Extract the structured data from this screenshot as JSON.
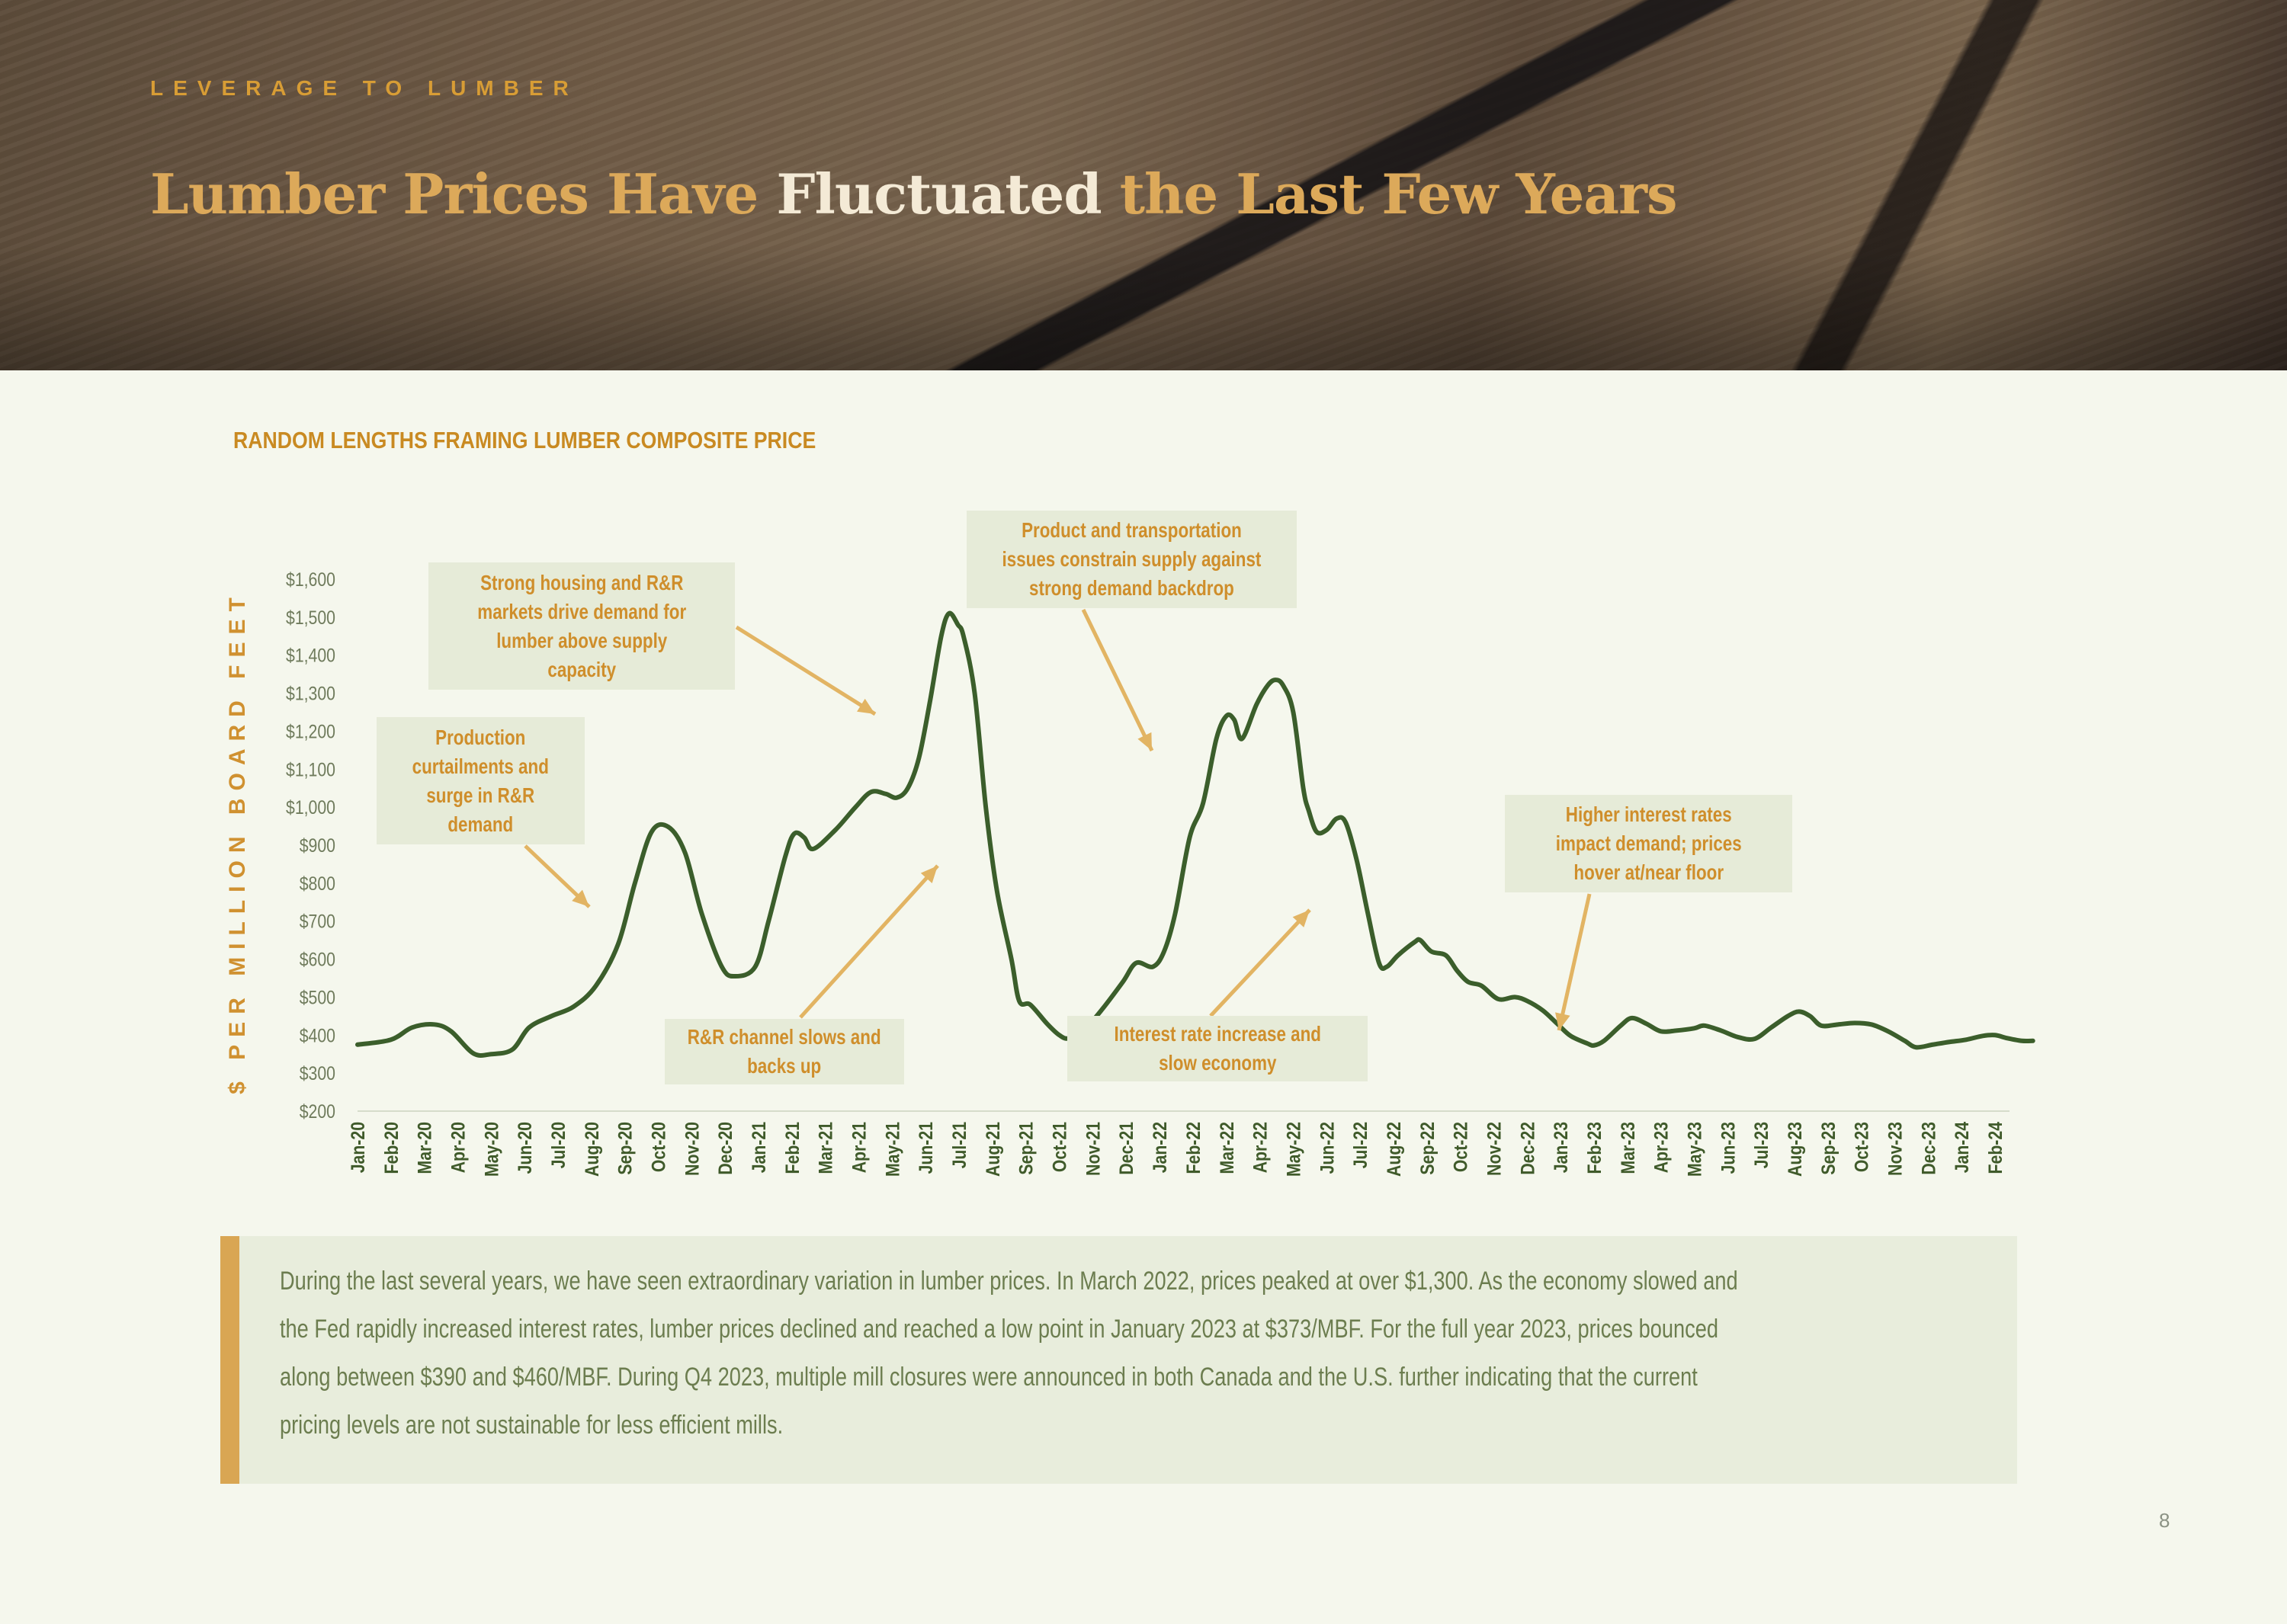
{
  "header": {
    "kicker": "LEVERAGE TO LUMBER",
    "title_part1": "Lumber Prices Have ",
    "title_highlight": "Fluctuated",
    "title_part2": " the Last Few Years"
  },
  "colors": {
    "accent_gold": "#d89d35",
    "line_green": "#3b5e2b",
    "annotation_bg": "#e6ebd8",
    "note_bar": "#d9a653"
  },
  "chart_data": {
    "type": "line",
    "title": "RANDOM LENGTHS FRAMING LUMBER COMPOSITE PRICE",
    "xlabel": "",
    "ylabel": "$ PER MILLION BOARD FEET",
    "ylim": [
      200,
      1600
    ],
    "y_ticks": [
      "$200",
      "$300",
      "$400",
      "$500",
      "$600",
      "$700",
      "$800",
      "$900",
      "$1,000",
      "$1,100",
      "$1,200",
      "$1,300",
      "$1,400",
      "$1,500",
      "$1,600"
    ],
    "y_tick_values": [
      200,
      300,
      400,
      500,
      600,
      700,
      800,
      900,
      1000,
      1100,
      1200,
      1300,
      1400,
      1500,
      1600
    ],
    "x_tick_labels": [
      "Jan-20",
      "Feb-20",
      "Mar-20",
      "Apr-20",
      "May-20",
      "Jun-20",
      "Jul-20",
      "Aug-20",
      "Sep-20",
      "Oct-20",
      "Nov-20",
      "Dec-20",
      "Jan-21",
      "Feb-21",
      "Mar-21",
      "Apr-21",
      "May-21",
      "Jun-21",
      "Jul-21",
      "Aug-21",
      "Sep-21",
      "Oct-21",
      "Nov-21",
      "Dec-21",
      "Jan-22",
      "Feb-22",
      "Mar-22",
      "Apr-22",
      "May-22",
      "Jun-22",
      "Jul-22",
      "Aug-22",
      "Sep-22",
      "Oct-22",
      "Nov-22",
      "Dec-22",
      "Jan-23",
      "Feb-23",
      "Mar-23",
      "Apr-23",
      "May-23",
      "Jun-23",
      "Jul-23",
      "Aug-23",
      "Sep-23",
      "Oct-23",
      "Nov-23",
      "Dec-23",
      "Jan-24",
      "Feb-24"
    ],
    "grid": false,
    "series": [
      {
        "points": [
          [
            "2020-01-01",
            375
          ],
          [
            "2020-02-01",
            388
          ],
          [
            "2020-02-20",
            420
          ],
          [
            "2020-03-10",
            428
          ],
          [
            "2020-03-25",
            410
          ],
          [
            "2020-04-15",
            352
          ],
          [
            "2020-05-01",
            350
          ],
          [
            "2020-05-20",
            362
          ],
          [
            "2020-06-05",
            420
          ],
          [
            "2020-06-25",
            450
          ],
          [
            "2020-07-15",
            475
          ],
          [
            "2020-08-05",
            530
          ],
          [
            "2020-08-25",
            640
          ],
          [
            "2020-09-10",
            800
          ],
          [
            "2020-09-25",
            935
          ],
          [
            "2020-10-10",
            948
          ],
          [
            "2020-10-25",
            880
          ],
          [
            "2020-11-10",
            720
          ],
          [
            "2020-11-28",
            580
          ],
          [
            "2020-12-10",
            555
          ],
          [
            "2020-12-28",
            580
          ],
          [
            "2021-01-10",
            700
          ],
          [
            "2021-01-25",
            870
          ],
          [
            "2021-02-03",
            930
          ],
          [
            "2021-02-12",
            920
          ],
          [
            "2021-02-20",
            890
          ],
          [
            "2021-03-10",
            940
          ],
          [
            "2021-03-28",
            1000
          ],
          [
            "2021-04-12",
            1040
          ],
          [
            "2021-04-25",
            1035
          ],
          [
            "2021-05-05",
            1025
          ],
          [
            "2021-05-15",
            1050
          ],
          [
            "2021-05-25",
            1130
          ],
          [
            "2021-06-05",
            1280
          ],
          [
            "2021-06-15",
            1450
          ],
          [
            "2021-06-22",
            1510
          ],
          [
            "2021-06-30",
            1480
          ],
          [
            "2021-07-05",
            1450
          ],
          [
            "2021-07-15",
            1300
          ],
          [
            "2021-07-25",
            1000
          ],
          [
            "2021-08-05",
            780
          ],
          [
            "2021-08-18",
            600
          ],
          [
            "2021-08-25",
            490
          ],
          [
            "2021-09-05",
            480
          ],
          [
            "2021-09-20",
            430
          ],
          [
            "2021-10-01",
            400
          ],
          [
            "2021-10-10",
            392
          ],
          [
            "2021-10-25",
            420
          ],
          [
            "2021-11-10",
            470
          ],
          [
            "2021-11-28",
            540
          ],
          [
            "2021-12-10",
            590
          ],
          [
            "2021-12-25",
            580
          ],
          [
            "2022-01-05",
            620
          ],
          [
            "2022-01-15",
            720
          ],
          [
            "2022-01-28",
            920
          ],
          [
            "2022-02-10",
            1010
          ],
          [
            "2022-02-22",
            1180
          ],
          [
            "2022-03-01",
            1240
          ],
          [
            "2022-03-08",
            1230
          ],
          [
            "2022-03-15",
            1180
          ],
          [
            "2022-03-28",
            1270
          ],
          [
            "2022-04-08",
            1320
          ],
          [
            "2022-04-15",
            1335
          ],
          [
            "2022-04-22",
            1320
          ],
          [
            "2022-05-01",
            1250
          ],
          [
            "2022-05-10",
            1050
          ],
          [
            "2022-05-15",
            990
          ],
          [
            "2022-05-22",
            935
          ],
          [
            "2022-06-01",
            940
          ],
          [
            "2022-06-10",
            970
          ],
          [
            "2022-06-18",
            960
          ],
          [
            "2022-06-28",
            860
          ],
          [
            "2022-07-08",
            720
          ],
          [
            "2022-07-18",
            590
          ],
          [
            "2022-07-25",
            580
          ],
          [
            "2022-08-05",
            610
          ],
          [
            "2022-08-20",
            645
          ],
          [
            "2022-08-25",
            650
          ],
          [
            "2022-09-05",
            620
          ],
          [
            "2022-09-18",
            610
          ],
          [
            "2022-09-28",
            570
          ],
          [
            "2022-10-08",
            540
          ],
          [
            "2022-10-20",
            530
          ],
          [
            "2022-11-05",
            495
          ],
          [
            "2022-11-20",
            500
          ],
          [
            "2022-12-01",
            490
          ],
          [
            "2022-12-15",
            465
          ],
          [
            "2022-12-28",
            430
          ],
          [
            "2023-01-10",
            398
          ],
          [
            "2023-01-25",
            378
          ],
          [
            "2023-02-01",
            373
          ],
          [
            "2023-02-10",
            385
          ],
          [
            "2023-02-25",
            425
          ],
          [
            "2023-03-05",
            445
          ],
          [
            "2023-03-18",
            430
          ],
          [
            "2023-04-01",
            410
          ],
          [
            "2023-04-15",
            412
          ],
          [
            "2023-05-01",
            418
          ],
          [
            "2023-05-10",
            425
          ],
          [
            "2023-05-25",
            412
          ],
          [
            "2023-06-10",
            395
          ],
          [
            "2023-06-25",
            390
          ],
          [
            "2023-07-10",
            420
          ],
          [
            "2023-07-25",
            450
          ],
          [
            "2023-08-05",
            462
          ],
          [
            "2023-08-15",
            450
          ],
          [
            "2023-08-25",
            425
          ],
          [
            "2023-09-10",
            428
          ],
          [
            "2023-09-25",
            432
          ],
          [
            "2023-10-10",
            428
          ],
          [
            "2023-10-25",
            410
          ],
          [
            "2023-11-10",
            385
          ],
          [
            "2023-11-20",
            368
          ],
          [
            "2023-12-05",
            375
          ],
          [
            "2023-12-20",
            382
          ],
          [
            "2024-01-05",
            388
          ],
          [
            "2024-01-20",
            398
          ],
          [
            "2024-02-01",
            400
          ],
          [
            "2024-02-12",
            392
          ],
          [
            "2024-02-25",
            385
          ],
          [
            "2024-03-05",
            385
          ]
        ]
      }
    ],
    "annotations": [
      {
        "text": "Production curtailments and surge in R&R demand",
        "points_to": "2020-08"
      },
      {
        "text": "Strong housing and R&R markets drive demand for lumber above supply capacity",
        "points_to": "2021-05"
      },
      {
        "text": "R&R channel slows and backs up",
        "points_to": "2021-07"
      },
      {
        "text": "Product and transportation issues constrain supply against strong demand backdrop",
        "points_to": "2022-01"
      },
      {
        "text": "Interest rate increase and slow economy",
        "points_to": "2022-06"
      },
      {
        "text": "Higher interest rates impact demand; prices hover at/near floor",
        "points_to": "2023-01"
      }
    ]
  },
  "annotations_lines": [
    [
      "Production",
      "curtailments and",
      "surge in R&R",
      "demand"
    ],
    [
      "Strong housing and R&R",
      "markets drive demand for",
      "lumber above supply",
      "capacity"
    ],
    [
      "R&R channel slows and",
      "backs up"
    ],
    [
      "Product and transportation",
      "issues constrain supply against",
      "strong demand backdrop"
    ],
    [
      "Interest rate increase and",
      "slow economy"
    ],
    [
      "Higher interest rates",
      "impact demand; prices",
      "hover at/near floor"
    ]
  ],
  "note": {
    "lines": [
      "During the last several years, we have seen extraordinary variation in lumber prices. In March 2022, prices peaked at over $1,300. As the economy slowed and",
      "the Fed rapidly increased interest rates, lumber prices declined and reached a low point in January 2023 at $373/MBF. For the full year 2023, prices bounced",
      "along between $390 and $460/MBF. During Q4 2023, multiple mill closures were announced in both Canada and the U.S. further indicating that the current",
      "pricing levels are not sustainable for less efficient mills."
    ]
  },
  "page_number": "8"
}
